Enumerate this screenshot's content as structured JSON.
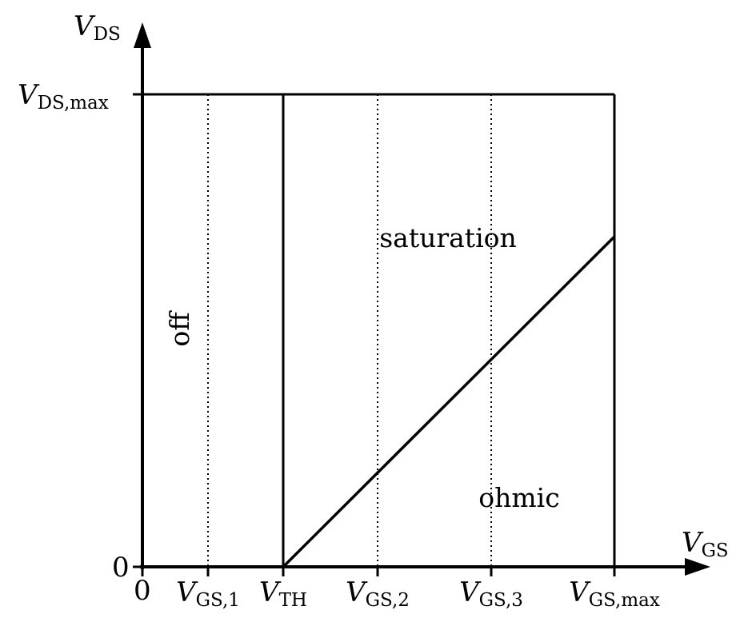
{
  "axes": {
    "y_axis_label": {
      "main": "V",
      "sub": "DS"
    },
    "x_axis_label": {
      "main": "V",
      "sub": "GS"
    },
    "origin_x_label": "0",
    "origin_y_label": "0",
    "y_max_label": {
      "main": "V",
      "sub": "DS,max"
    }
  },
  "x_ticks": [
    {
      "main": "V",
      "sub": "GS,1"
    },
    {
      "main": "V",
      "sub": "TH"
    },
    {
      "main": "V",
      "sub": "GS,2"
    },
    {
      "main": "V",
      "sub": "GS,3"
    },
    {
      "main": "V",
      "sub": "GS,max"
    }
  ],
  "regions": {
    "off": "off",
    "saturation": "saturation",
    "ohmic": "ohmic"
  },
  "colors": {
    "line": "#000000",
    "background": "#ffffff"
  }
}
